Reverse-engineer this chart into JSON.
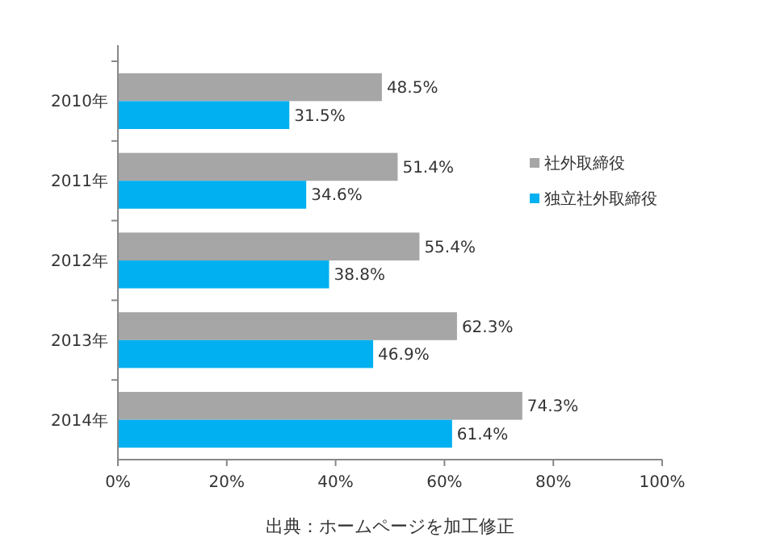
{
  "chart_data": {
    "type": "bar",
    "orientation": "horizontal",
    "categories": [
      "2010年",
      "2011年",
      "2012年",
      "2013年",
      "2014年"
    ],
    "series": [
      {
        "name": "社外取締役",
        "color": "#a6a6a6",
        "values": [
          48.5,
          51.4,
          55.4,
          62.3,
          74.3
        ],
        "value_labels": [
          "48.5%",
          "51.4%",
          "55.4%",
          "62.3%",
          "74.3%"
        ]
      },
      {
        "name": "独立社外取締役",
        "color": "#00b0f0",
        "values": [
          31.5,
          34.6,
          38.8,
          46.9,
          61.4
        ],
        "value_labels": [
          "31.5%",
          "34.6%",
          "38.8%",
          "46.9%",
          "61.4%"
        ]
      }
    ],
    "xlim": [
      0,
      100
    ],
    "xticks": [
      {
        "value": 0,
        "label": "0%"
      },
      {
        "value": 20,
        "label": "20%"
      },
      {
        "value": 40,
        "label": "40%"
      },
      {
        "value": 60,
        "label": "60%"
      },
      {
        "value": 80,
        "label": "80%"
      },
      {
        "value": 100,
        "label": "100%"
      }
    ],
    "legend": "right",
    "grid": false,
    "annotations": [
      "出典：ホームページを加工修正"
    ]
  }
}
